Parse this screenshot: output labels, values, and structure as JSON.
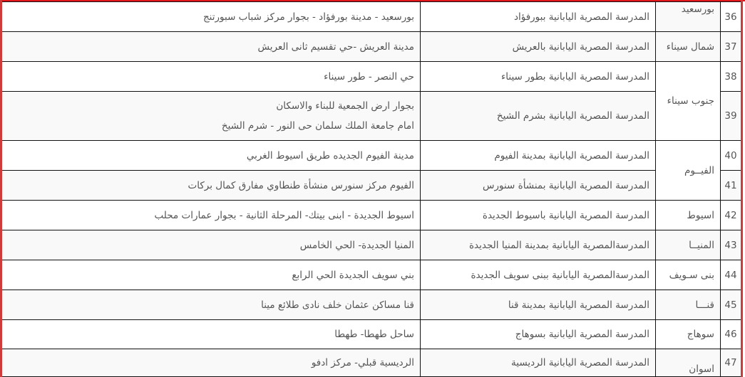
{
  "colors": {
    "border_accent": "#e0161b",
    "row_alt": "#f9f9f9",
    "text": "#555555"
  },
  "rows": [
    {
      "num": "36",
      "school": "المدرسة المصرية اليابانية ببورفؤاد",
      "address": [
        "بورسعيد - مدينة بورفؤاد - بجوار مركز شباب سبورتنج"
      ]
    },
    {
      "num": "37",
      "school": "المدرسة المصرية اليابانية بالعريش",
      "address": [
        "مدينة العريش -حي تقسيم ثانى العريش"
      ]
    },
    {
      "num": "38",
      "school": "المدرسة المصرية اليابانية بطور سيناء",
      "address": [
        "حي النصر - طور سيناء"
      ]
    },
    {
      "num": "39",
      "school": "المدرسة المصرية اليابانية بشرم الشيخ",
      "address": [
        "بجوار ارض الجمعية للبناء والاسكان",
        "امام جامعة الملك سلمان حى النور - شرم الشيخ"
      ]
    },
    {
      "num": "40",
      "school": "المدرسة المصرية اليابانية بمدينة الفيوم",
      "address": [
        "مدينة الفيوم الجديده طريق اسيوط الغربي"
      ]
    },
    {
      "num": "41",
      "school": "المدرسة المصرية اليابانية بمنشأة سنورس",
      "address": [
        "الفيوم مركز سنورس منشأة طنطاوي مفارق كمال بركات"
      ]
    },
    {
      "num": "42",
      "school": "المدرسة المصرية اليابانية باسيوط الجديدة",
      "address": [
        "اسيوط الجديدة - ابنى بيتك- المرحلة الثانية - بجوار عمارات محلب"
      ]
    },
    {
      "num": "43",
      "school": "المدرسةالمصرية اليابانية بمدينة المنيا الجديدة",
      "address": [
        "المنيا الجديدة- الحي الخامس"
      ]
    },
    {
      "num": "44",
      "school": "المدرسةالمصرية اليابانية ببنى سويف الجديدة",
      "address": [
        "بني سويف الجديدة الحي الرابع"
      ]
    },
    {
      "num": "45",
      "school": "المدرسة المصرية اليابانية بمدينة قنا",
      "address": [
        "قنا مساكن عثمان خلف نادى طلائع مينا"
      ]
    },
    {
      "num": "46",
      "school": "المدرسة المصرية اليابانية بسوهاج",
      "address": [
        "ساحل طهطا- طهطا"
      ]
    },
    {
      "num": "47",
      "school": "المدرسة المصرية اليابانية الرديسية",
      "address": [
        "الرديسية قبلي- مركز ادفو"
      ]
    }
  ],
  "governorates": [
    {
      "name": "بورسعيد",
      "first": 0,
      "last": 0,
      "extends_above": true
    },
    {
      "name": "شمال سيناء",
      "first": 1,
      "last": 1
    },
    {
      "name": "جنوب سيناء",
      "first": 2,
      "last": 3
    },
    {
      "name": "الفيــوم",
      "first": 4,
      "last": 5
    },
    {
      "name": "اسيوط",
      "first": 6,
      "last": 6
    },
    {
      "name": "المنيــا",
      "first": 7,
      "last": 7
    },
    {
      "name": "بنى سـويف",
      "first": 8,
      "last": 8
    },
    {
      "name": "قنـــا",
      "first": 9,
      "last": 9
    },
    {
      "name": "سوهاج",
      "first": 10,
      "last": 10
    },
    {
      "name": "اسوان",
      "first": 11,
      "last": 11,
      "extends_below": true
    }
  ]
}
